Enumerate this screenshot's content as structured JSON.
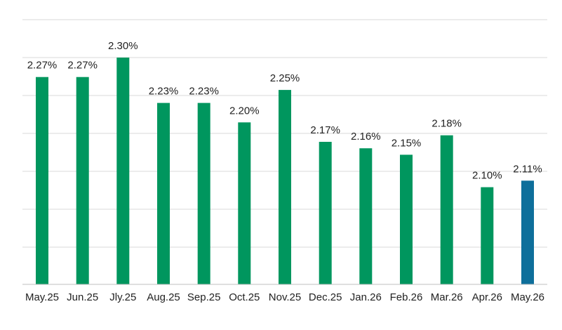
{
  "chart_data": {
    "type": "bar",
    "title": "",
    "xlabel": "",
    "ylabel": "",
    "categories": [
      "May.25",
      "Jun.25",
      "Jly.25",
      "Aug.25",
      "Sep.25",
      "Oct.25",
      "Nov.25",
      "Dec.25",
      "Jan.26",
      "Feb.26",
      "Mar.26",
      "Apr.26",
      "May.26"
    ],
    "values": [
      2.27,
      2.27,
      2.3,
      2.23,
      2.23,
      2.2,
      2.25,
      2.17,
      2.16,
      2.15,
      2.18,
      2.1,
      2.11
    ],
    "value_labels": [
      "2.27%",
      "2.27%",
      "2.30%",
      "2.23%",
      "2.23%",
      "2.20%",
      "2.25%",
      "2.17%",
      "2.16%",
      "2.15%",
      "2.18%",
      "2.10%",
      "2.11%"
    ],
    "ylim": [
      1.95,
      2.3
    ],
    "grid": true,
    "legend": "none",
    "colors": {
      "default_bar": "#00965E",
      "highlight_bar": "#0E6F9B",
      "grid": "#D9D9D9",
      "axis": "#BFBFBF"
    },
    "highlight_index": 12
  }
}
